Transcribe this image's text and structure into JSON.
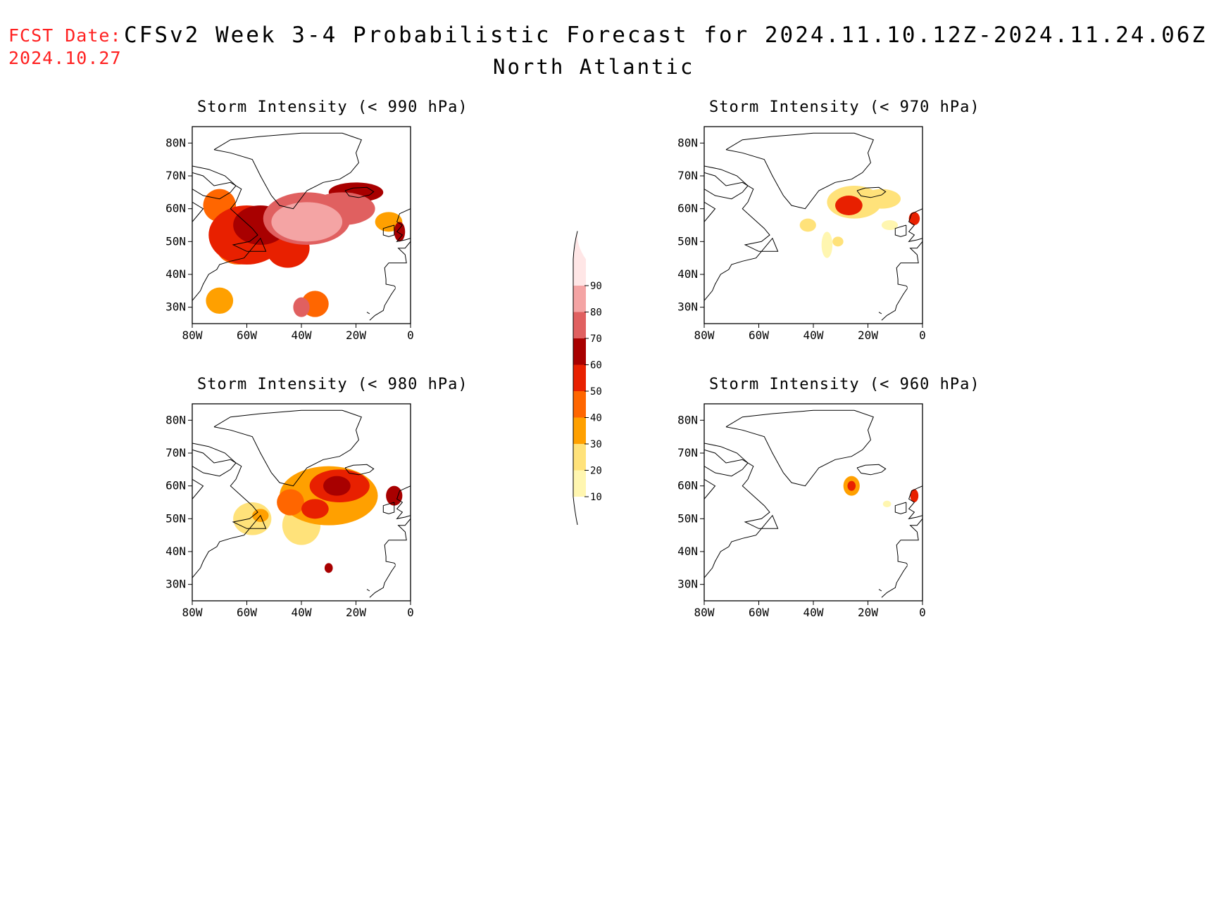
{
  "header": {
    "fcst_label": "FCST Date:",
    "fcst_date": "2024.10.27",
    "title": "CFSv2 Week 3-4 Probabilistic Forecast for 2024.11.10.12Z-2024.11.24.06Z",
    "region": "North Atlantic"
  },
  "lat_ticks": [
    "80N",
    "70N",
    "60N",
    "50N",
    "40N",
    "30N"
  ],
  "lon_ticks": [
    "80W",
    "60W",
    "40W",
    "20W",
    "0"
  ],
  "panels": [
    {
      "id": "p990",
      "title": "Storm Intensity (< 990 hPa)",
      "blobs": [
        {
          "lon": -70,
          "lat": 61,
          "rx": 6,
          "ry": 5,
          "level": 40
        },
        {
          "lon": -60,
          "lat": 52,
          "rx": 14,
          "ry": 9,
          "level": 50
        },
        {
          "lon": -55,
          "lat": 55,
          "rx": 10,
          "ry": 6,
          "level": 60
        },
        {
          "lon": -63,
          "lat": 48,
          "rx": 8,
          "ry": 5,
          "level": 40
        },
        {
          "lon": -38,
          "lat": 57,
          "rx": 16,
          "ry": 8,
          "level": 70
        },
        {
          "lon": -38,
          "lat": 56,
          "rx": 13,
          "ry": 6,
          "level": 80
        },
        {
          "lon": -25,
          "lat": 60,
          "rx": 12,
          "ry": 5,
          "level": 70
        },
        {
          "lon": -20,
          "lat": 65,
          "rx": 10,
          "ry": 3,
          "level": 60
        },
        {
          "lon": -45,
          "lat": 48,
          "rx": 8,
          "ry": 6,
          "level": 50
        },
        {
          "lon": -35,
          "lat": 31,
          "rx": 5,
          "ry": 4,
          "level": 40
        },
        {
          "lon": -40,
          "lat": 30,
          "rx": 3,
          "ry": 3,
          "level": 70
        },
        {
          "lon": -70,
          "lat": 32,
          "rx": 5,
          "ry": 4,
          "level": 30
        },
        {
          "lon": -8,
          "lat": 56,
          "rx": 5,
          "ry": 3,
          "level": 30
        },
        {
          "lon": -4,
          "lat": 53,
          "rx": 2,
          "ry": 3,
          "level": 60
        }
      ]
    },
    {
      "id": "p970",
      "title": "Storm Intensity (< 970 hPa)",
      "blobs": [
        {
          "lon": -25,
          "lat": 62,
          "rx": 10,
          "ry": 5,
          "level": 20
        },
        {
          "lon": -27,
          "lat": 61,
          "rx": 5,
          "ry": 3,
          "level": 50
        },
        {
          "lon": -15,
          "lat": 63,
          "rx": 7,
          "ry": 3,
          "level": 20
        },
        {
          "lon": -42,
          "lat": 55,
          "rx": 3,
          "ry": 2,
          "level": 20
        },
        {
          "lon": -35,
          "lat": 49,
          "rx": 2,
          "ry": 4,
          "level": 10
        },
        {
          "lon": -31,
          "lat": 50,
          "rx": 2,
          "ry": 1.5,
          "level": 20
        },
        {
          "lon": -12,
          "lat": 55,
          "rx": 3,
          "ry": 1.5,
          "level": 10
        },
        {
          "lon": -3,
          "lat": 57,
          "rx": 2,
          "ry": 2,
          "level": 50
        }
      ]
    },
    {
      "id": "p980",
      "title": "Storm Intensity (< 980 hPa)",
      "blobs": [
        {
          "lon": -30,
          "lat": 57,
          "rx": 18,
          "ry": 9,
          "level": 30
        },
        {
          "lon": -26,
          "lat": 60,
          "rx": 11,
          "ry": 5,
          "level": 50
        },
        {
          "lon": -27,
          "lat": 60,
          "rx": 5,
          "ry": 3,
          "level": 60
        },
        {
          "lon": -44,
          "lat": 55,
          "rx": 5,
          "ry": 4,
          "level": 40
        },
        {
          "lon": -35,
          "lat": 53,
          "rx": 5,
          "ry": 3,
          "level": 50
        },
        {
          "lon": -40,
          "lat": 48,
          "rx": 7,
          "ry": 6,
          "level": 20
        },
        {
          "lon": -58,
          "lat": 50,
          "rx": 7,
          "ry": 5,
          "level": 20
        },
        {
          "lon": -55,
          "lat": 51,
          "rx": 3,
          "ry": 2,
          "level": 30
        },
        {
          "lon": -30,
          "lat": 35,
          "rx": 1.5,
          "ry": 1.5,
          "level": 60
        },
        {
          "lon": -6,
          "lat": 57,
          "rx": 3,
          "ry": 3,
          "level": 60
        }
      ]
    },
    {
      "id": "p960",
      "title": "Storm Intensity (< 960 hPa)",
      "blobs": [
        {
          "lon": -26,
          "lat": 60,
          "rx": 3,
          "ry": 3,
          "level": 30
        },
        {
          "lon": -26,
          "lat": 60,
          "rx": 1.5,
          "ry": 1.5,
          "level": 50
        },
        {
          "lon": -13,
          "lat": 54.5,
          "rx": 1.5,
          "ry": 1,
          "level": 10
        },
        {
          "lon": -3,
          "lat": 57,
          "rx": 1.5,
          "ry": 2,
          "level": 50
        }
      ]
    }
  ],
  "colorbar": {
    "levels": [
      "10",
      "20",
      "30",
      "40",
      "50",
      "60",
      "70",
      "80",
      "90"
    ],
    "colors": [
      "#fff6b0",
      "#ffe27a",
      "#ffa000",
      "#ff6600",
      "#e82000",
      "#a80000",
      "#e06060",
      "#f4a4a4",
      "#ffe6e6"
    ]
  }
}
